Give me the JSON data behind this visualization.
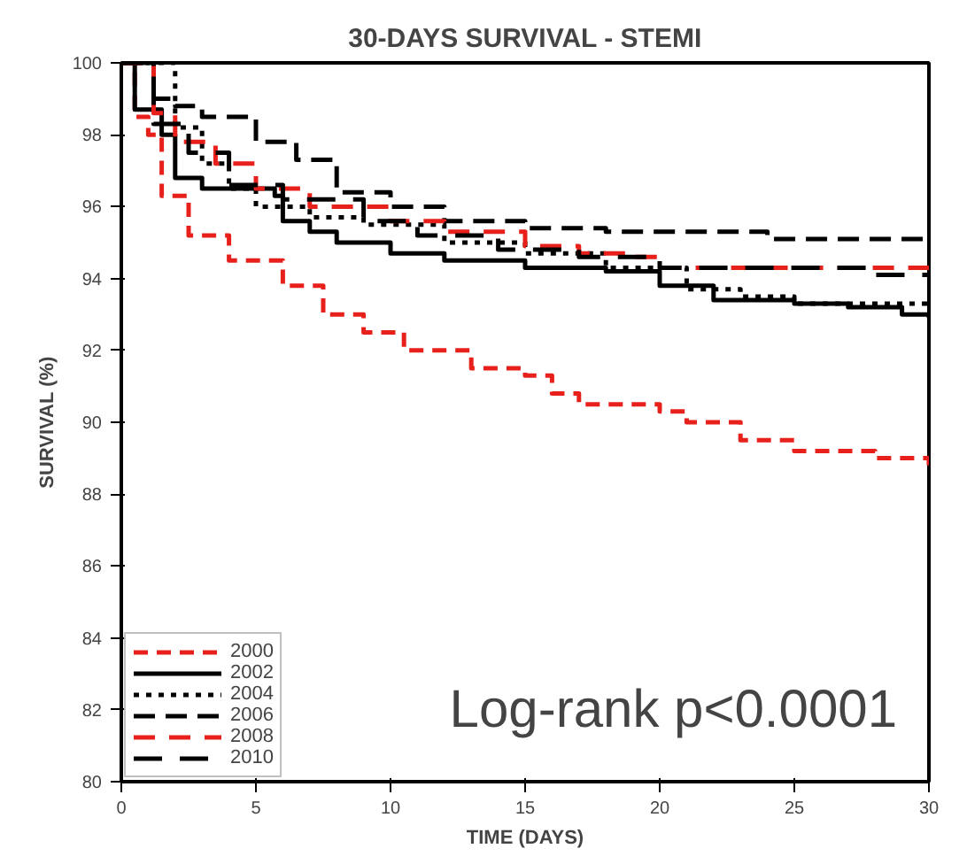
{
  "chart_data": {
    "type": "step",
    "title": "30-DAYS SURVIVAL - STEMI",
    "xlabel": "TIME (DAYS)",
    "ylabel": "SURVIVAL (%)",
    "xlim": [
      0,
      30
    ],
    "ylim": [
      80,
      100
    ],
    "xticks": [
      0,
      5,
      10,
      15,
      20,
      25,
      30
    ],
    "yticks": [
      80,
      82,
      84,
      86,
      88,
      90,
      92,
      94,
      96,
      98,
      100
    ],
    "grid": false,
    "legend": "bottom left",
    "marker": "none",
    "annotations": [
      "Log-rank p<0.0001"
    ],
    "series": [
      {
        "name": "2000",
        "color": "#e8201c",
        "line_style": "dashed",
        "x": [
          0,
          0.5,
          1,
          1.5,
          2.5,
          4,
          6,
          7.5,
          9,
          10.5,
          13,
          15,
          16,
          17,
          20,
          21,
          23,
          25,
          28,
          30
        ],
        "values": [
          100,
          98.5,
          98,
          96.3,
          95.2,
          94.5,
          93.8,
          93,
          92.5,
          92,
          91.5,
          91.3,
          90.8,
          90.5,
          90.3,
          90,
          89.5,
          89.2,
          89,
          88.8
        ]
      },
      {
        "name": "2002",
        "color": "#000000",
        "line_style": "solid",
        "x": [
          0,
          0.5,
          1.5,
          2,
          3,
          5.7,
          6,
          7,
          8,
          10,
          12,
          15,
          18,
          20,
          22,
          25,
          27,
          29,
          30
        ],
        "values": [
          100,
          98.7,
          98,
          96.8,
          96.5,
          96.3,
          95.6,
          95.3,
          95,
          94.7,
          94.5,
          94.3,
          94.2,
          93.8,
          93.4,
          93.3,
          93.2,
          93,
          92.9
        ]
      },
      {
        "name": "2004",
        "color": "#000000",
        "line_style": "dotted",
        "x": [
          0,
          1.2,
          2,
          3,
          4,
          5,
          7,
          9,
          12,
          15,
          18,
          21,
          23,
          25,
          30
        ],
        "values": [
          100,
          100,
          98.2,
          97.2,
          96.5,
          96,
          95.7,
          95.5,
          95,
          94.7,
          94.3,
          93.7,
          93.5,
          93.3,
          93.2
        ]
      },
      {
        "name": "2006",
        "color": "#000000",
        "line_style": "dashed",
        "x": [
          0,
          1.2,
          2,
          3,
          5,
          6.5,
          8,
          10,
          12,
          15,
          18,
          24,
          30
        ],
        "values": [
          100,
          99,
          98.8,
          98.5,
          97.8,
          97.3,
          96.4,
          96,
          95.6,
          95.4,
          95.3,
          95.1,
          95
        ]
      },
      {
        "name": "2008",
        "color": "#e8201c",
        "line_style": "dashed",
        "x": [
          0,
          1.2,
          2,
          3.5,
          5,
          7,
          10,
          12,
          15,
          17,
          19,
          20,
          30
        ],
        "values": [
          100,
          98.6,
          97.8,
          97.2,
          96.5,
          96,
          95.6,
          95.3,
          94.9,
          94.7,
          94.6,
          94.3,
          94.2
        ]
      },
      {
        "name": "2010",
        "color": "#000000",
        "line_style": "dashed",
        "x": [
          0,
          1.2,
          2.5,
          4,
          6,
          9,
          11,
          14,
          17,
          20,
          28,
          30
        ],
        "values": [
          100,
          98.3,
          97.5,
          96.6,
          96.2,
          95.6,
          95.2,
          94.8,
          94.6,
          94.3,
          94.1,
          94.1
        ]
      }
    ]
  }
}
